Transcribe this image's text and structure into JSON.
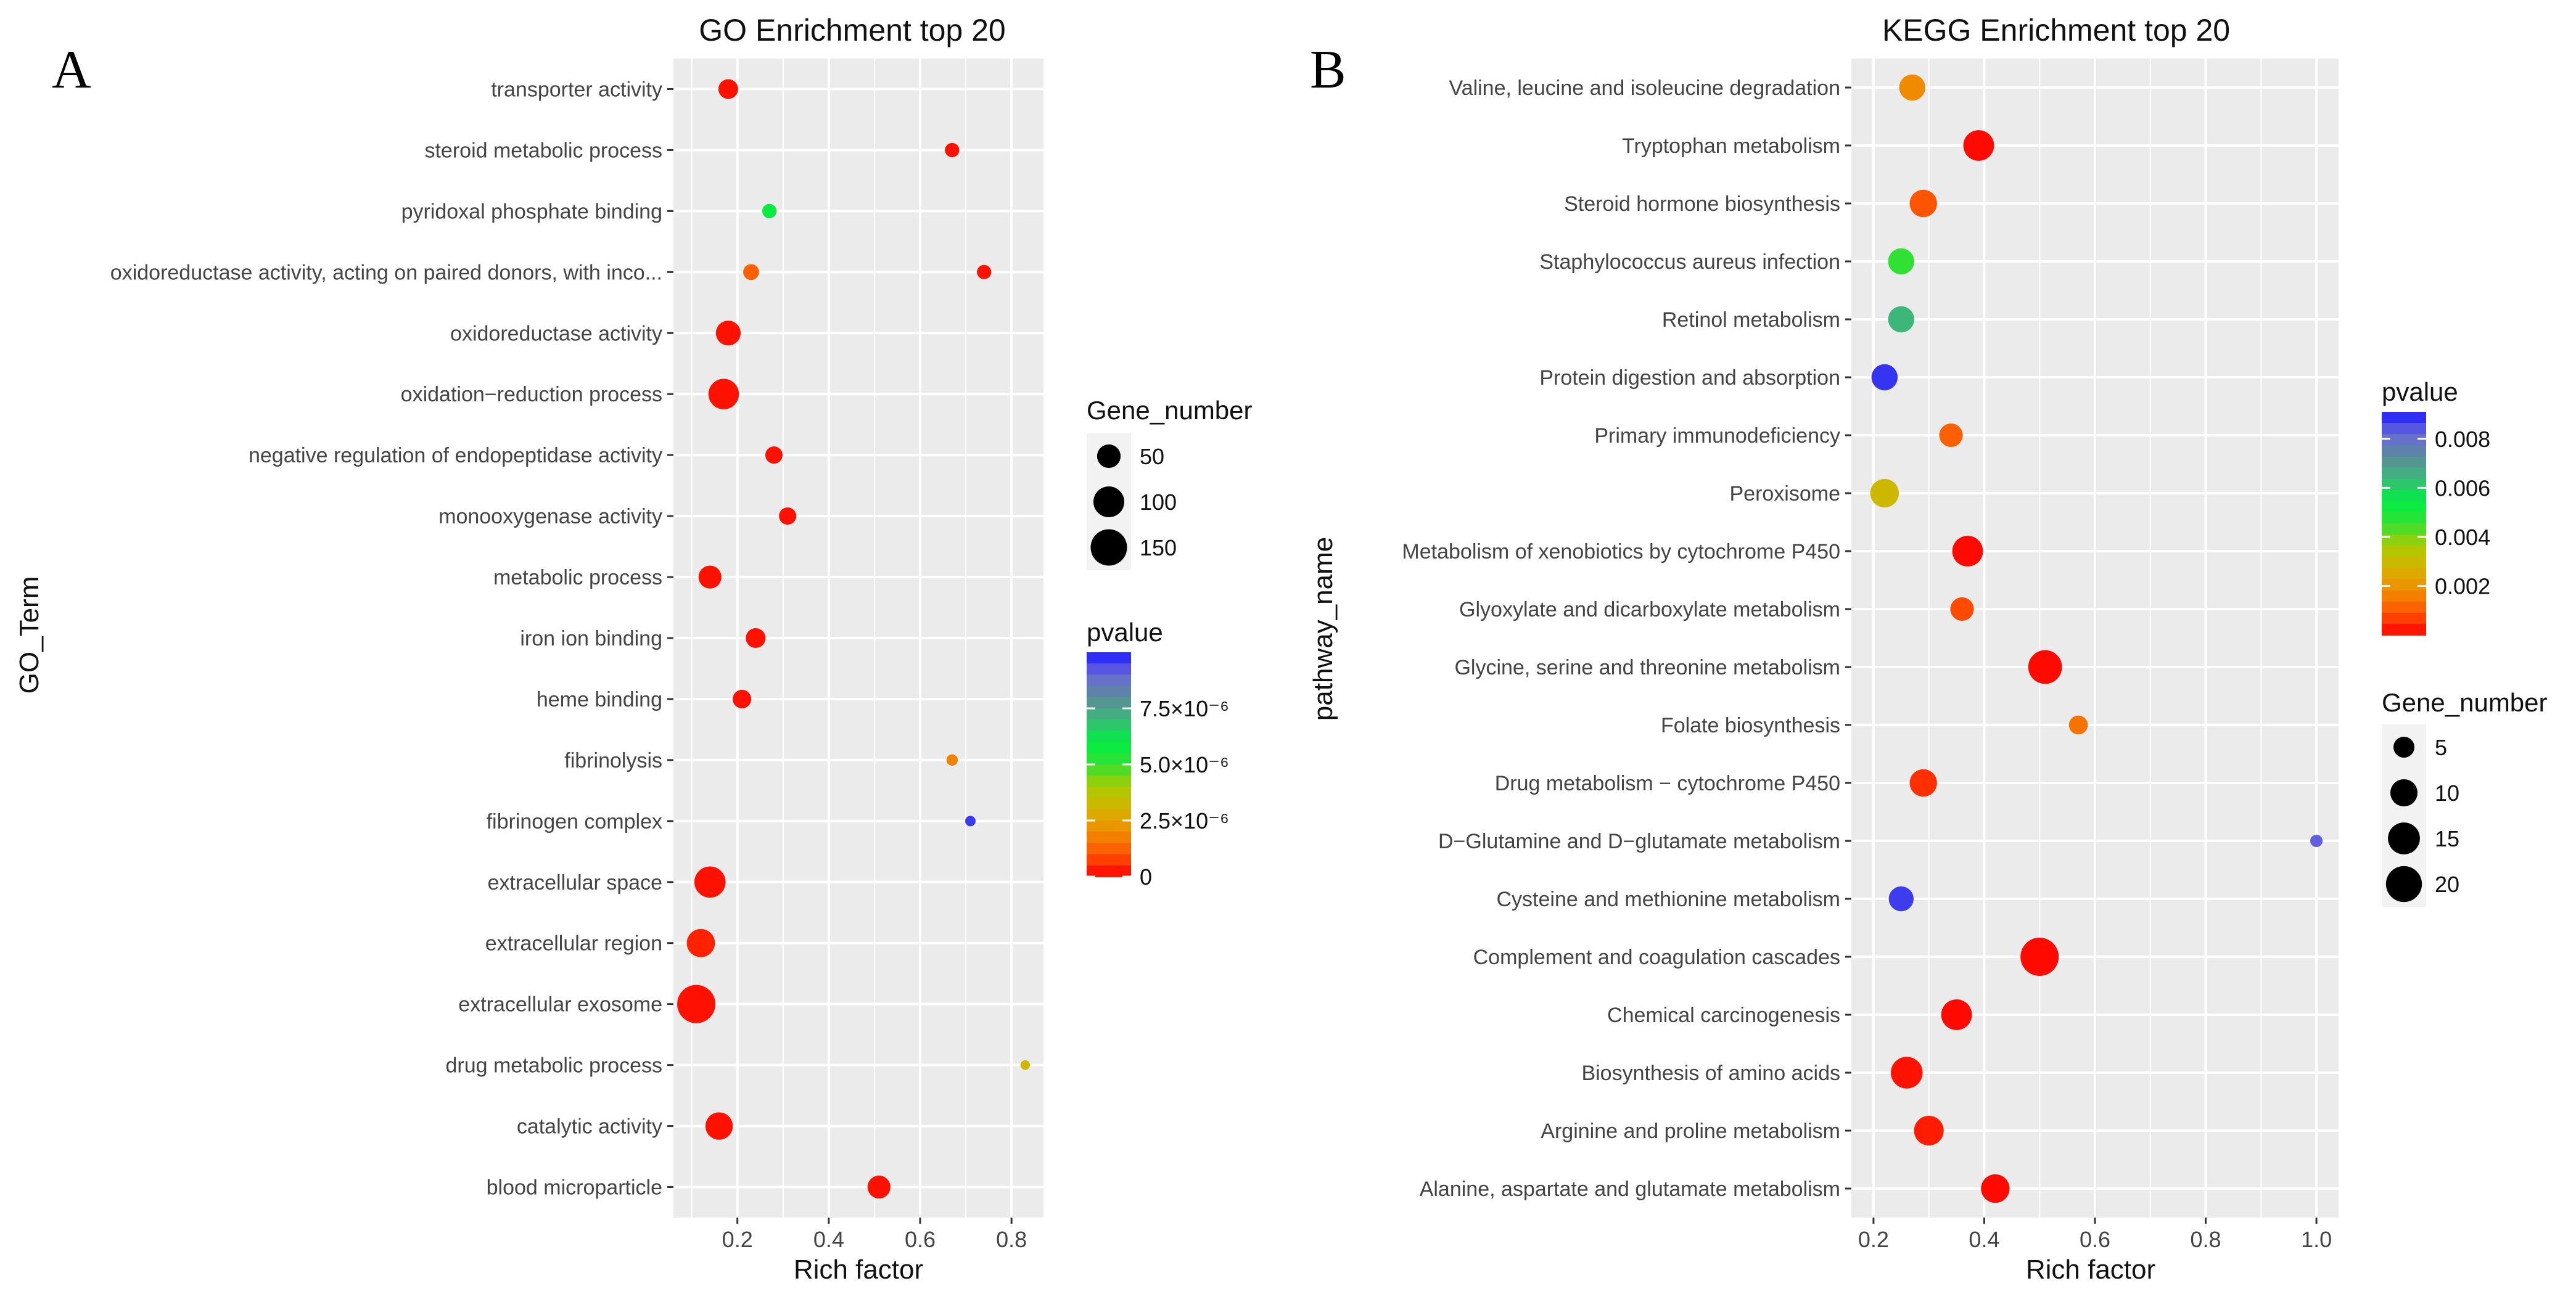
{
  "colors": {
    "panel_bg": "#ebebeb",
    "grid": "#ffffff",
    "pvalue_gradient": [
      "#ff0000",
      "#ff5500",
      "#f08c00",
      "#d6b200",
      "#a8cc00",
      "#33e033",
      "#00ee44",
      "#3cb878",
      "#5a8a9a",
      "#6a6ad8",
      "#1a1aff"
    ]
  },
  "chart_data": [
    {
      "panel_label": "A",
      "type": "scatter",
      "title": "GO Enrichment top 20",
      "xlabel": "Rich factor",
      "ylabel": "GO_Term",
      "xlim": [
        0.06,
        0.87
      ],
      "xticks": [
        0.2,
        0.4,
        0.6,
        0.8
      ],
      "xtick_labels": [
        "0.2",
        "0.4",
        "0.6",
        "0.8"
      ],
      "size_legend": {
        "title": "Gene_number",
        "values": [
          50,
          100,
          150
        ],
        "labels": [
          "50",
          "100",
          "150"
        ],
        "range": [
          0,
          160
        ]
      },
      "color_legend": {
        "title": "pvalue",
        "min": 0,
        "max": 1e-05,
        "ticks": [
          0,
          2.5e-06,
          5e-06,
          7.5e-06
        ],
        "tick_labels": [
          "0",
          "2.5×10⁻⁶",
          "5.0×10⁻⁶",
          "7.5×10⁻⁶"
        ]
      },
      "categories": [
        "transporter activity",
        "steroid metabolic process",
        "pyridoxal phosphate binding",
        "oxidoreductase activity, acting on paired donors, with inco...",
        "oxidoreductase activity",
        "oxidation−reduction process",
        "negative regulation of endopeptidase activity",
        "monooxygenase activity",
        "metabolic process",
        "iron ion binding",
        "heme binding",
        "fibrinolysis",
        "fibrinogen complex",
        "extracellular space",
        "extracellular region",
        "extracellular exosome",
        "drug metabolic process",
        "catalytic activity",
        "blood microparticle"
      ],
      "points": [
        {
          "category": "transporter activity",
          "x": 0.18,
          "gene_number": 40,
          "pvalue": 2e-07
        },
        {
          "category": "steroid metabolic process",
          "x": 0.67,
          "gene_number": 20,
          "pvalue": 2e-07
        },
        {
          "category": "pyridoxal phosphate binding",
          "x": 0.27,
          "gene_number": 20,
          "pvalue": 5.8e-06
        },
        {
          "category": "oxidoreductase activity, acting on paired donors, with inco...",
          "x": 0.23,
          "gene_number": 25,
          "pvalue": 1.2e-06
        },
        {
          "category": "oxidoreductase activity, acting on paired donors, with inco...",
          "x": 0.74,
          "gene_number": 20,
          "pvalue": 2e-07
        },
        {
          "category": "oxidoreductase activity",
          "x": 0.18,
          "gene_number": 65,
          "pvalue": 2e-07
        },
        {
          "category": "oxidation−reduction process",
          "x": 0.17,
          "gene_number": 100,
          "pvalue": 2e-07
        },
        {
          "category": "negative regulation of endopeptidase activity",
          "x": 0.28,
          "gene_number": 30,
          "pvalue": 2e-07
        },
        {
          "category": "monooxygenase activity",
          "x": 0.31,
          "gene_number": 30,
          "pvalue": 2e-07
        },
        {
          "category": "metabolic process",
          "x": 0.14,
          "gene_number": 55,
          "pvalue": 2e-07
        },
        {
          "category": "iron ion binding",
          "x": 0.24,
          "gene_number": 40,
          "pvalue": 2e-07
        },
        {
          "category": "heme binding",
          "x": 0.21,
          "gene_number": 35,
          "pvalue": 2e-07
        },
        {
          "category": "fibrinolysis",
          "x": 0.67,
          "gene_number": 12,
          "pvalue": 1.8e-06
        },
        {
          "category": "fibrinogen complex",
          "x": 0.71,
          "gene_number": 10,
          "pvalue": 9.6e-06
        },
        {
          "category": "extracellular space",
          "x": 0.14,
          "gene_number": 105,
          "pvalue": 2e-07
        },
        {
          "category": "extracellular region",
          "x": 0.12,
          "gene_number": 85,
          "pvalue": 4e-07
        },
        {
          "category": "extracellular exosome",
          "x": 0.11,
          "gene_number": 160,
          "pvalue": 2e-07
        },
        {
          "category": "drug metabolic process",
          "x": 0.83,
          "gene_number": 8,
          "pvalue": 3.2e-06
        },
        {
          "category": "catalytic activity",
          "x": 0.16,
          "gene_number": 80,
          "pvalue": 2e-07
        },
        {
          "category": "blood microparticle",
          "x": 0.51,
          "gene_number": 55,
          "pvalue": 2e-07
        }
      ]
    },
    {
      "panel_label": "B",
      "type": "scatter",
      "title": "KEGG Enrichment top 20",
      "xlabel": "Rich factor",
      "ylabel": "pathway_name",
      "xlim": [
        0.16,
        1.04
      ],
      "xticks": [
        0.2,
        0.4,
        0.6,
        0.8,
        1.0
      ],
      "xtick_labels": [
        "0.2",
        "0.4",
        "0.6",
        "0.8",
        "1.0"
      ],
      "size_legend": {
        "title": "Gene_number",
        "values": [
          5,
          10,
          15,
          20
        ],
        "labels": [
          "5",
          "10",
          "15",
          "20"
        ],
        "range": [
          0,
          22
        ]
      },
      "color_legend": {
        "title": "pvalue",
        "min": 0,
        "max": 0.0091,
        "ticks": [
          0.002,
          0.004,
          0.006,
          0.008
        ],
        "tick_labels": [
          "0.002",
          "0.004",
          "0.006",
          "0.008"
        ]
      },
      "categories": [
        "Valine, leucine and isoleucine degradation",
        "Tryptophan metabolism",
        "Steroid hormone biosynthesis",
        "Staphylococcus aureus infection",
        "Retinol metabolism",
        "Protein digestion and absorption",
        "Primary immunodeficiency",
        "Peroxisome",
        "Metabolism of xenobiotics by cytochrome P450",
        "Glyoxylate and dicarboxylate metabolism",
        "Glycine, serine and threonine metabolism",
        "Folate biosynthesis",
        "Drug metabolism − cytochrome P450",
        "D−Glutamine and D−glutamate metabolism",
        "Cysteine and methionine metabolism",
        "Complement and coagulation cascades",
        "Chemical carcinogenesis",
        "Biosynthesis of amino acids",
        "Arginine and proline metabolism",
        "Alanine, aspartate and glutamate metabolism"
      ],
      "points": [
        {
          "category": "Valine, leucine and isoleucine degradation",
          "x": 0.27,
          "gene_number": 10,
          "pvalue": 0.0018
        },
        {
          "category": "Tryptophan metabolism",
          "x": 0.39,
          "gene_number": 14,
          "pvalue": 0.0001
        },
        {
          "category": "Steroid hormone biosynthesis",
          "x": 0.29,
          "gene_number": 11,
          "pvalue": 0.0009
        },
        {
          "category": "Staphylococcus aureus infection",
          "x": 0.25,
          "gene_number": 10,
          "pvalue": 0.0046
        },
        {
          "category": "Retinol metabolism",
          "x": 0.25,
          "gene_number": 10,
          "pvalue": 0.0064
        },
        {
          "category": "Protein digestion and absorption",
          "x": 0.22,
          "gene_number": 10,
          "pvalue": 0.0088
        },
        {
          "category": "Primary immunodeficiency",
          "x": 0.34,
          "gene_number": 8,
          "pvalue": 0.0011
        },
        {
          "category": "Peroxisome",
          "x": 0.22,
          "gene_number": 12,
          "pvalue": 0.0029
        },
        {
          "category": "Metabolism of xenobiotics by cytochrome P450",
          "x": 0.37,
          "gene_number": 14,
          "pvalue": 0.0001
        },
        {
          "category": "Glyoxylate and dicarboxylate metabolism",
          "x": 0.36,
          "gene_number": 8,
          "pvalue": 0.0008
        },
        {
          "category": "Glycine, serine and threonine metabolism",
          "x": 0.51,
          "gene_number": 17,
          "pvalue": 0.0001
        },
        {
          "category": "Folate biosynthesis",
          "x": 0.57,
          "gene_number": 5,
          "pvalue": 0.0014
        },
        {
          "category": "Drug metabolism − cytochrome P450",
          "x": 0.29,
          "gene_number": 11,
          "pvalue": 0.0005
        },
        {
          "category": "D−Glutamine and D−glutamate metabolism",
          "x": 1.0,
          "gene_number": 2,
          "pvalue": 0.0083
        },
        {
          "category": "Cysteine and methionine metabolism",
          "x": 0.25,
          "gene_number": 9,
          "pvalue": 0.0087
        },
        {
          "category": "Complement and coagulation cascades",
          "x": 0.5,
          "gene_number": 22,
          "pvalue": 0.0001
        },
        {
          "category": "Chemical carcinogenesis",
          "x": 0.35,
          "gene_number": 14,
          "pvalue": 0.0001
        },
        {
          "category": "Biosynthesis of amino acids",
          "x": 0.26,
          "gene_number": 15,
          "pvalue": 0.0002
        },
        {
          "category": "Arginine and proline metabolism",
          "x": 0.3,
          "gene_number": 13,
          "pvalue": 0.0003
        },
        {
          "category": "Alanine, aspartate and glutamate metabolism",
          "x": 0.42,
          "gene_number": 12,
          "pvalue": 0.0001
        }
      ]
    }
  ]
}
